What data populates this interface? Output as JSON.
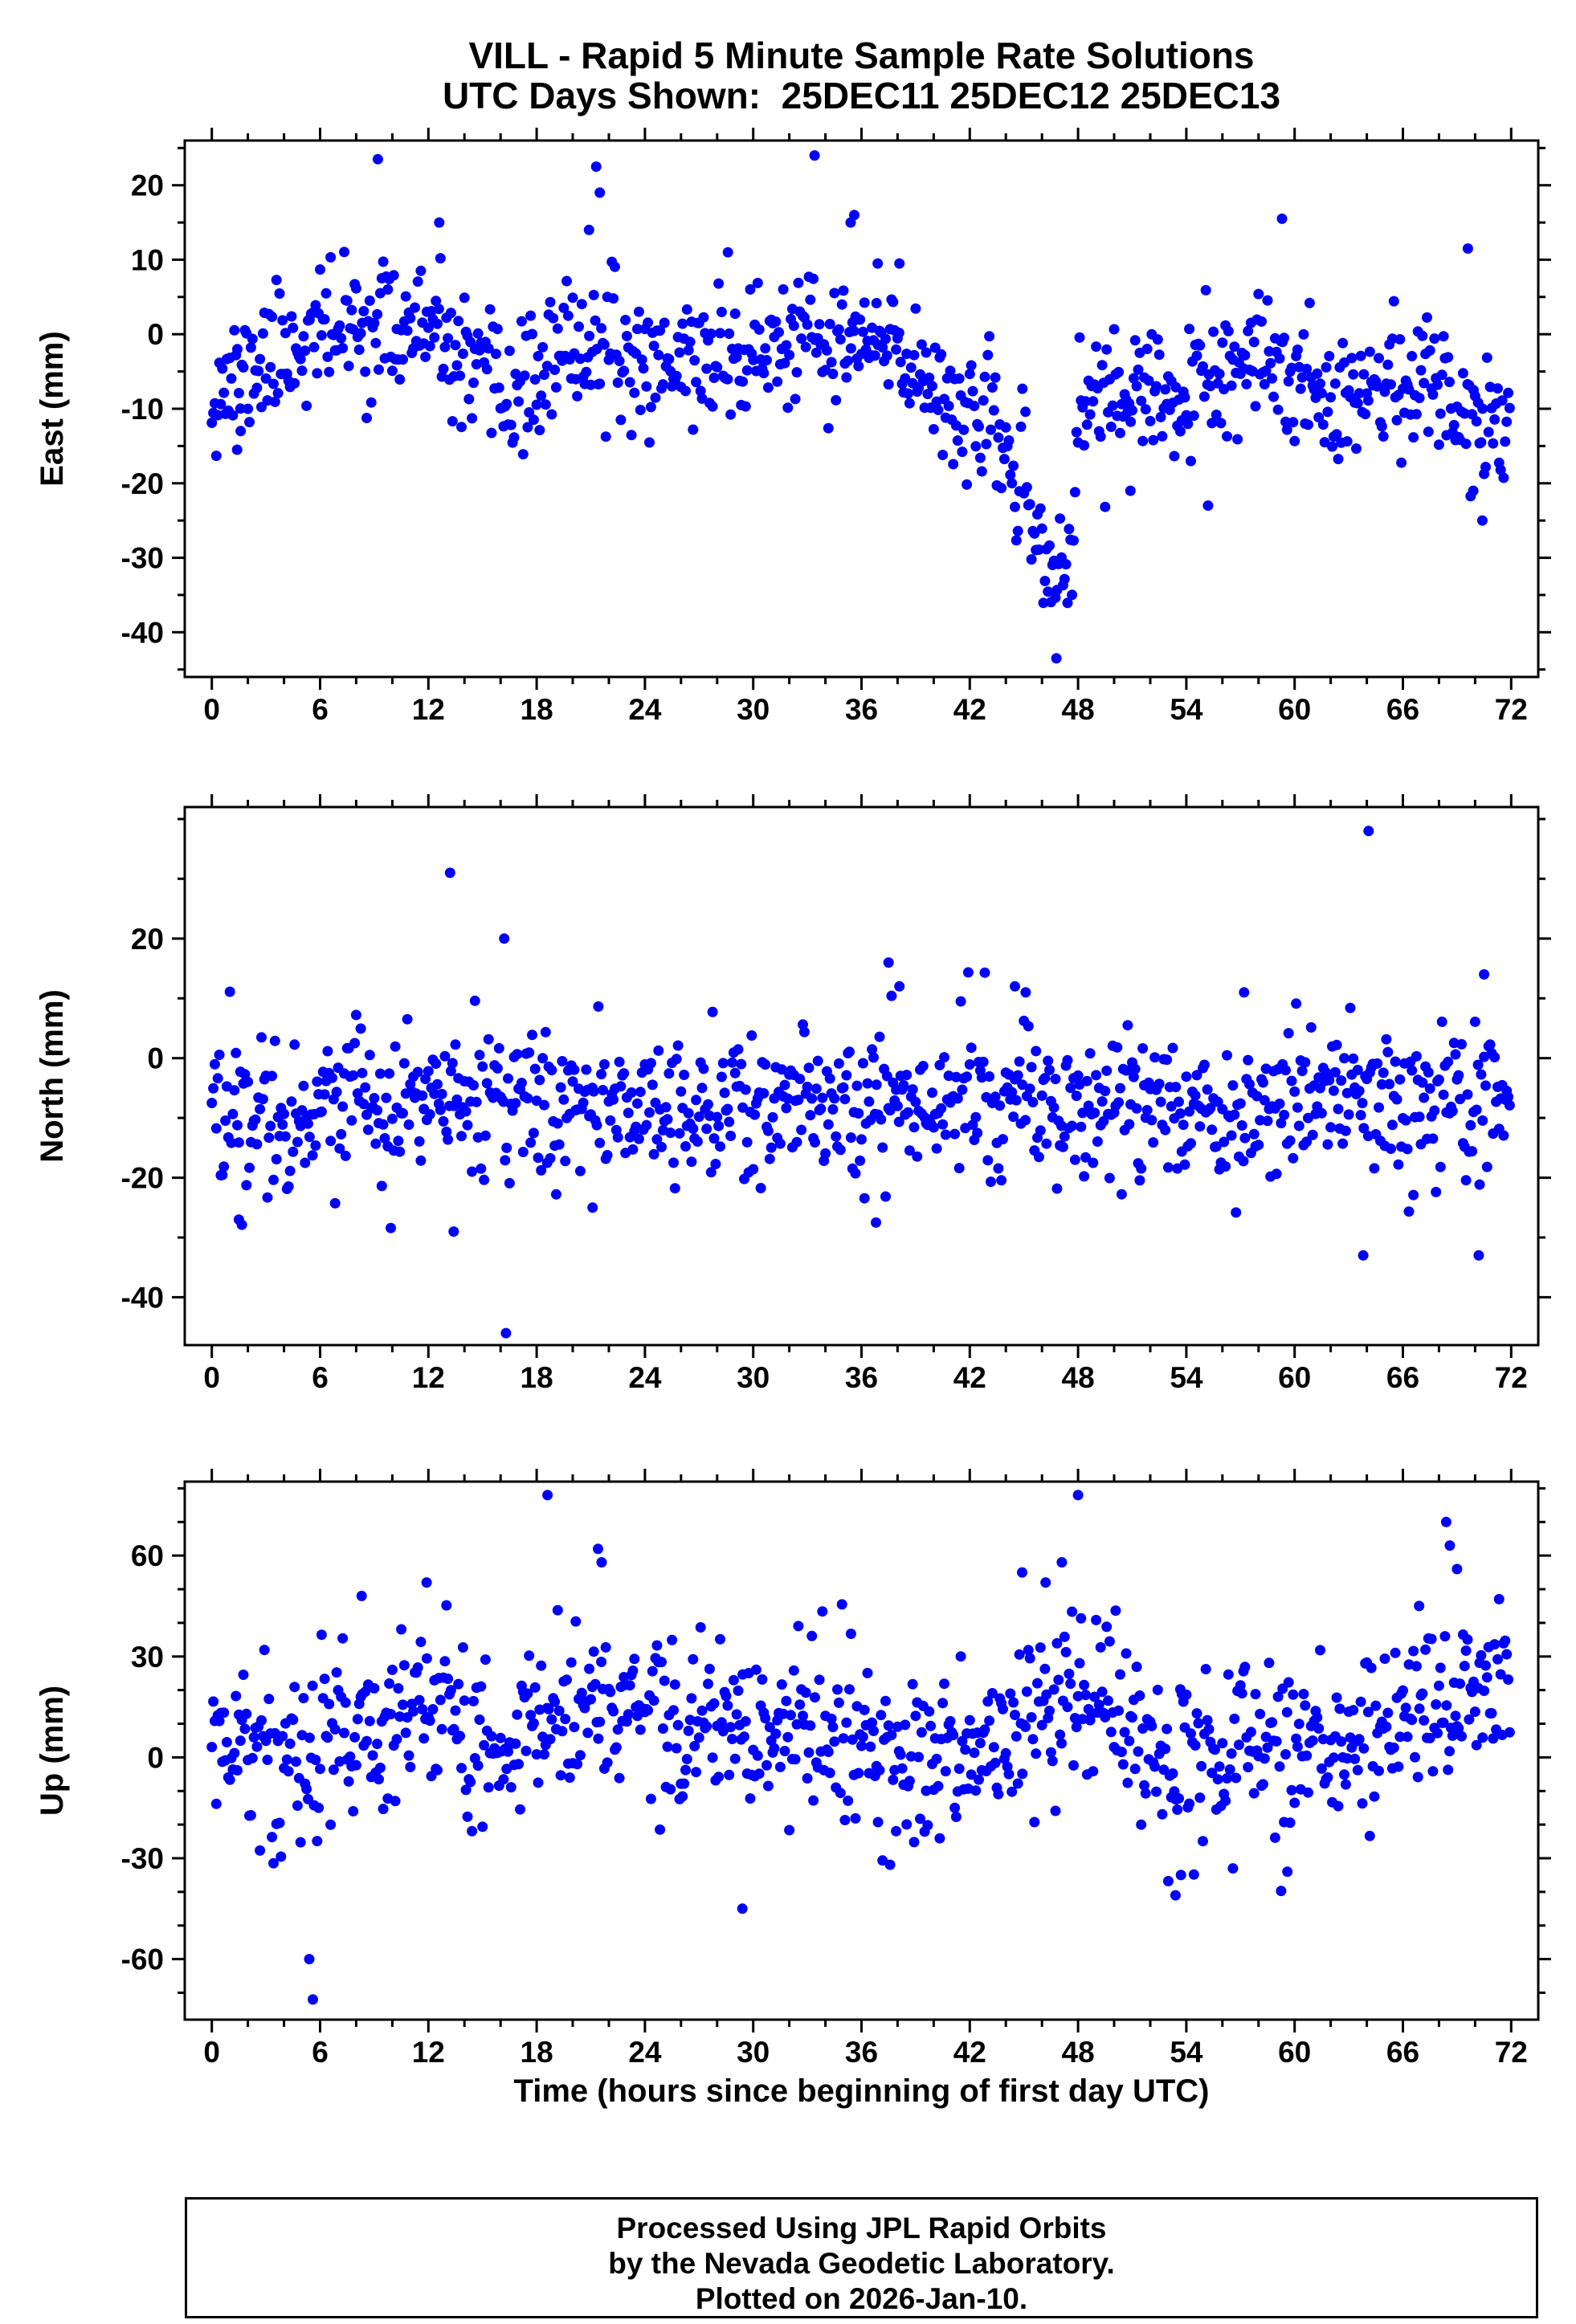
{
  "page": {
    "background": "#ffffff",
    "title_line1": "VILL - Rapid 5 Minute Sample Rate Solutions",
    "title_line2": "UTC Days Shown:  25DEC11 25DEC12 25DEC13"
  },
  "footer": {
    "lines": [
      "Processed Using JPL Rapid Orbits",
      "by the Nevada Geodetic Laboratory.",
      "Plotted on 2026-Jan-10."
    ]
  },
  "chart_data": [
    {
      "type": "scatter",
      "name": "east",
      "ylabel": "East (mm)",
      "xlabel": "",
      "marker_color": "#0000ff",
      "xlim": [
        -1.5,
        73.5
      ],
      "ylim": [
        -46,
        26
      ],
      "xticks": [
        0,
        6,
        12,
        18,
        24,
        30,
        36,
        42,
        48,
        54,
        60,
        66,
        72
      ],
      "yticks": [
        -40,
        -30,
        -20,
        -10,
        0,
        10,
        20
      ],
      "x_minor_step": 2,
      "y_minor_step": 5,
      "grid": false,
      "n_points": 864,
      "seed": 11,
      "sigma": 4.3,
      "baseline": [
        [
          0,
          -7
        ],
        [
          1.5,
          -6
        ],
        [
          3,
          -3
        ],
        [
          5,
          -1
        ],
        [
          7,
          1
        ],
        [
          9,
          1
        ],
        [
          11,
          1
        ],
        [
          12,
          0
        ],
        [
          13,
          -2
        ],
        [
          15,
          -7
        ],
        [
          17,
          -8
        ],
        [
          18,
          -6
        ],
        [
          20,
          -2
        ],
        [
          21,
          -1
        ],
        [
          23,
          -4
        ],
        [
          26,
          -3
        ],
        [
          29,
          -3
        ],
        [
          32,
          -1
        ],
        [
          34,
          -2
        ],
        [
          36,
          -1
        ],
        [
          38,
          -3
        ],
        [
          40,
          -6
        ],
        [
          42,
          -11
        ],
        [
          44,
          -15
        ],
        [
          44.6,
          -19
        ],
        [
          45.4,
          -27
        ],
        [
          46.2,
          -30
        ],
        [
          47.2,
          -32
        ],
        [
          47.8,
          -27
        ],
        [
          48.1,
          -9
        ],
        [
          50,
          -8
        ],
        [
          53,
          -9
        ],
        [
          56,
          -6
        ],
        [
          59,
          -4
        ],
        [
          61,
          -7
        ],
        [
          64,
          -7
        ],
        [
          67,
          -6
        ],
        [
          69,
          -9
        ],
        [
          70.5,
          -12
        ],
        [
          72,
          -9
        ]
      ],
      "outliers": [
        [
          9.2,
          23.5
        ],
        [
          12.6,
          15
        ],
        [
          20.9,
          14
        ],
        [
          21.3,
          22.5
        ],
        [
          21.5,
          19
        ],
        [
          28.6,
          11
        ],
        [
          33.4,
          24
        ],
        [
          35.4,
          15
        ],
        [
          35.6,
          16
        ],
        [
          36.9,
          9.5
        ],
        [
          38.1,
          9.5
        ],
        [
          46.8,
          -43.5
        ],
        [
          50.9,
          -21
        ],
        [
          55.2,
          -23
        ],
        [
          59.3,
          15.5
        ],
        [
          69.6,
          11.5
        ],
        [
          69.9,
          -21
        ],
        [
          70.4,
          -25
        ],
        [
          1.4,
          -15.5
        ],
        [
          1.6,
          -13
        ]
      ]
    },
    {
      "type": "scatter",
      "name": "north",
      "ylabel": "North (mm)",
      "xlabel": "",
      "marker_color": "#0000ff",
      "xlim": [
        -1.5,
        73.5
      ],
      "ylim": [
        -48,
        42
      ],
      "xticks": [
        0,
        6,
        12,
        18,
        24,
        30,
        36,
        42,
        48,
        54,
        60,
        66,
        72
      ],
      "yticks": [
        -40,
        -20,
        0,
        20
      ],
      "x_minor_step": 2,
      "y_minor_step": 10,
      "grid": false,
      "n_points": 864,
      "seed": 22,
      "sigma": 6.2,
      "baseline": [
        [
          0,
          -8
        ],
        [
          3,
          -9
        ],
        [
          6,
          -8
        ],
        [
          9,
          -8
        ],
        [
          12,
          -7
        ],
        [
          15,
          -8
        ],
        [
          18,
          -8
        ],
        [
          21,
          -8
        ],
        [
          24,
          -7
        ],
        [
          27,
          -8
        ],
        [
          30,
          -9
        ],
        [
          33,
          -9
        ],
        [
          36,
          -8
        ],
        [
          39,
          -7
        ],
        [
          42,
          -6
        ],
        [
          45,
          -7
        ],
        [
          48,
          -8
        ],
        [
          51,
          -8
        ],
        [
          54,
          -8
        ],
        [
          57,
          -8
        ],
        [
          60,
          -8
        ],
        [
          63,
          -7
        ],
        [
          66,
          -8
        ],
        [
          69,
          -9
        ],
        [
          72,
          -6
        ]
      ],
      "outliers": [
        [
          1.5,
          -27
        ],
        [
          13.2,
          31
        ],
        [
          13.4,
          -29
        ],
        [
          16.2,
          20
        ],
        [
          16.3,
          -46
        ],
        [
          21.1,
          -25
        ],
        [
          36.8,
          -27.5
        ],
        [
          37.5,
          16
        ],
        [
          38.1,
          12
        ],
        [
          44.5,
          12
        ],
        [
          45.1,
          11
        ],
        [
          57.2,
          11
        ],
        [
          63.8,
          -33
        ],
        [
          64.1,
          38
        ],
        [
          70.2,
          -33
        ],
        [
          70.5,
          14
        ]
      ]
    },
    {
      "type": "scatter",
      "name": "up",
      "ylabel": "Up (mm)",
      "xlabel": "Time (hours since beginning of first day UTC)",
      "marker_color": "#0000ff",
      "xlim": [
        -1.5,
        73.5
      ],
      "ylim": [
        -78,
        82
      ],
      "xticks": [
        0,
        6,
        12,
        18,
        24,
        30,
        36,
        42,
        48,
        54,
        60,
        66,
        72
      ],
      "yticks": [
        -60,
        -30,
        0,
        30,
        60
      ],
      "x_minor_step": 2,
      "y_minor_step": 10,
      "grid": false,
      "n_points": 864,
      "seed": 33,
      "sigma": 13,
      "baseline": [
        [
          0,
          4
        ],
        [
          2,
          3
        ],
        [
          4,
          -3
        ],
        [
          6,
          2
        ],
        [
          8,
          10
        ],
        [
          10,
          12
        ],
        [
          12,
          14
        ],
        [
          14,
          4
        ],
        [
          16,
          2
        ],
        [
          18,
          12
        ],
        [
          20,
          16
        ],
        [
          22,
          18
        ],
        [
          24,
          13
        ],
        [
          26,
          10
        ],
        [
          28,
          8
        ],
        [
          30,
          6
        ],
        [
          32,
          8
        ],
        [
          34,
          6
        ],
        [
          36,
          2
        ],
        [
          38,
          0
        ],
        [
          40,
          -2
        ],
        [
          42,
          -3
        ],
        [
          44,
          6
        ],
        [
          46,
          14
        ],
        [
          48,
          18
        ],
        [
          50,
          14
        ],
        [
          52,
          8
        ],
        [
          54,
          -2
        ],
        [
          56,
          2
        ],
        [
          58,
          4
        ],
        [
          60,
          0
        ],
        [
          62,
          3
        ],
        [
          64,
          6
        ],
        [
          66,
          10
        ],
        [
          68,
          16
        ],
        [
          70,
          14
        ],
        [
          72,
          18
        ]
      ],
      "outliers": [
        [
          5.4,
          -60
        ],
        [
          5.6,
          -72
        ],
        [
          8.3,
          48
        ],
        [
          11.9,
          52
        ],
        [
          18.6,
          78
        ],
        [
          21.4,
          62
        ],
        [
          21.6,
          58
        ],
        [
          29.4,
          -45
        ],
        [
          44.9,
          55
        ],
        [
          46.2,
          52
        ],
        [
          47.1,
          58
        ],
        [
          48.0,
          78
        ],
        [
          53.4,
          -41
        ],
        [
          53.7,
          -35
        ],
        [
          59.6,
          -34
        ],
        [
          66.9,
          45
        ],
        [
          68.4,
          70
        ],
        [
          68.6,
          63
        ],
        [
          69.0,
          56
        ]
      ]
    }
  ]
}
